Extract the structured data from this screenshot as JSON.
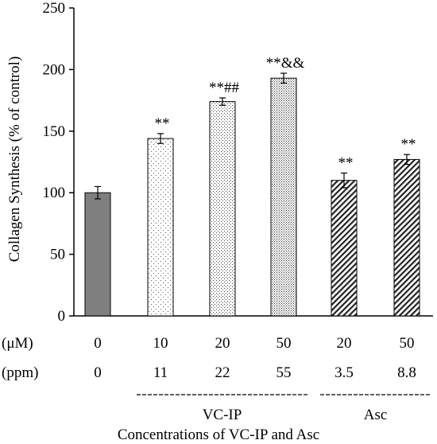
{
  "chart_data": {
    "type": "bar",
    "ylabel": "Collagen Synthesis (% of control)",
    "xlabel": "Concentrations of VC-IP and Asc",
    "ylim": [
      0,
      250
    ],
    "yticks": [
      0,
      50,
      100,
      150,
      200,
      250
    ],
    "row_labels": {
      "um": "(μM)",
      "ppm": "(ppm)"
    },
    "categories": [
      {
        "um": "0",
        "ppm": "0",
        "value": 100,
        "error": 5,
        "annotation": "",
        "fill": "solid-gray"
      },
      {
        "um": "10",
        "ppm": "11",
        "value": 144,
        "error": 4,
        "annotation": "**",
        "fill": "dots-sparse"
      },
      {
        "um": "20",
        "ppm": "22",
        "value": 174,
        "error": 3,
        "annotation": "**##",
        "fill": "dots-medium"
      },
      {
        "um": "50",
        "ppm": "55",
        "value": 193,
        "error": 4,
        "annotation": "**&&",
        "fill": "dots-dense"
      },
      {
        "um": "20",
        "ppm": "3.5",
        "value": 110,
        "error": 6,
        "annotation": "**",
        "fill": "hatch"
      },
      {
        "um": "50",
        "ppm": "8.8",
        "value": 127,
        "error": 4,
        "annotation": "**",
        "fill": "hatch"
      }
    ],
    "groups": [
      {
        "label": "VC-IP",
        "from": 1,
        "to": 3
      },
      {
        "label": "Asc",
        "from": 4,
        "to": 5
      }
    ],
    "grid": false,
    "colors": {
      "solid_bar": "#7f7f7f",
      "axis": "#000000"
    }
  }
}
